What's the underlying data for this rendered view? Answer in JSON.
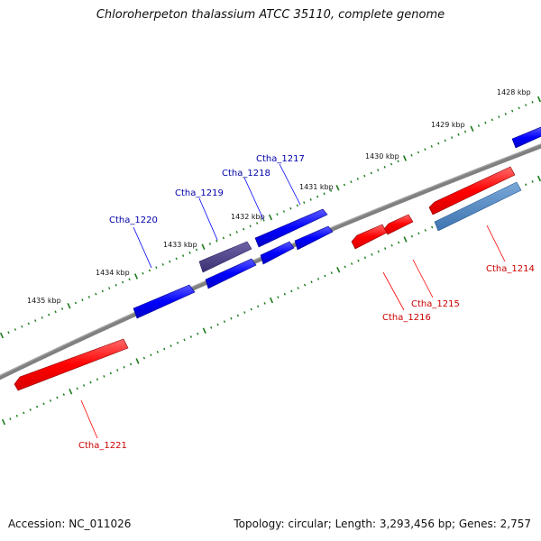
{
  "title": "Chloroherpeton thalassium ATCC 35110, complete genome",
  "footer": {
    "accession": "Accession: NC_011026",
    "topology": "Topology: circular; Length: 3,293,456 bp; Genes: 2,757"
  },
  "ruler_labels": [
    "1428 kbp",
    "1429 kbp",
    "1430 kbp",
    "1431 kbp",
    "1432 kbp",
    "1433 kbp",
    "1434 kbp",
    "1435 kbp"
  ],
  "genes": [
    {
      "name": "Ctha_1214",
      "color": "#cc0000"
    },
    {
      "name": "Ctha_1215",
      "color": "#cc0000"
    },
    {
      "name": "Ctha_1216",
      "color": "#cc0000"
    },
    {
      "name": "Ctha_1217",
      "color": "#0000aa"
    },
    {
      "name": "Ctha_1218",
      "color": "#0000aa"
    },
    {
      "name": "Ctha_1219",
      "color": "#0000aa"
    },
    {
      "name": "Ctha_1220",
      "color": "#0000aa"
    },
    {
      "name": "Ctha_1221",
      "color": "#cc0000"
    }
  ],
  "colors": {
    "forward_gene": "#0000ff",
    "reverse_gene": "#ff0000",
    "highlight_forward": "#4a3f86",
    "highlight_reverse": "#4f86c0",
    "backbone": "#808080",
    "ticks": "#1a7a1a"
  }
}
